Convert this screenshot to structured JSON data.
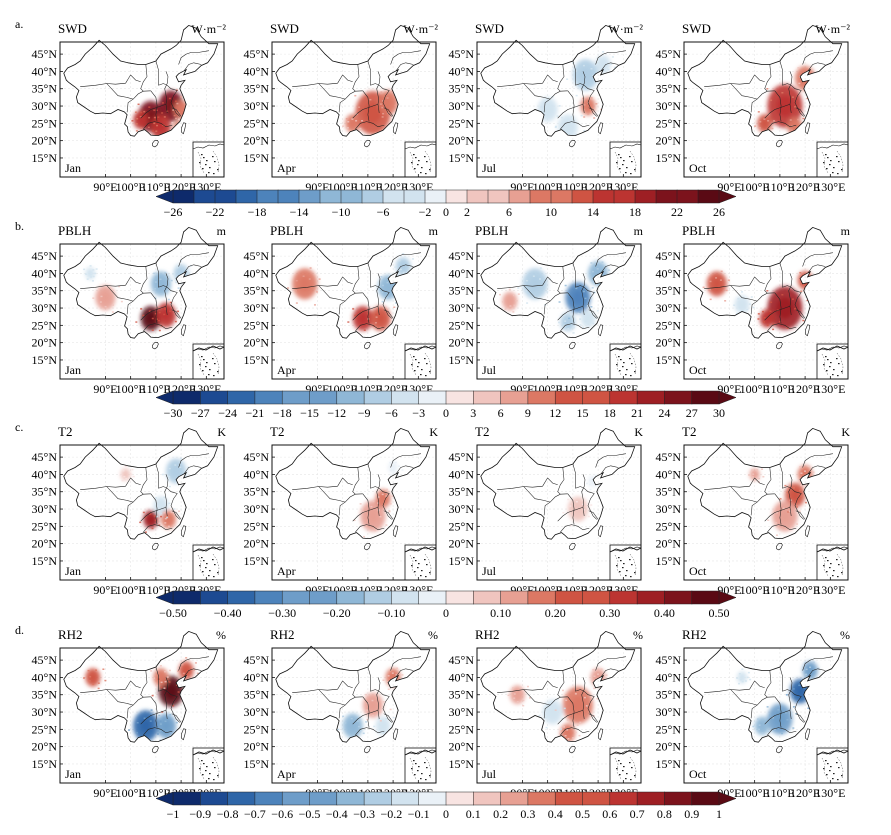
{
  "chart_data": {
    "type": "heatmap",
    "title": "",
    "months": [
      "Jan",
      "Apr",
      "Jul",
      "Oct"
    ],
    "lat_ticks": [
      "45°N",
      "40°N",
      "35°N",
      "30°N",
      "25°N",
      "20°N",
      "15°N"
    ],
    "lon_ticks": [
      "90°E",
      "100°E",
      "110°E",
      "120°E",
      "130°E"
    ],
    "rows": [
      {
        "panel_label": "a.",
        "variable": "SWD",
        "unit": "W·m⁻²",
        "colorbar": {
          "range": [
            -26,
            26
          ],
          "levels": [
            -26,
            -24,
            -22,
            -20,
            -18,
            -16,
            -14,
            -12,
            -10,
            -8,
            -6,
            -4,
            -2,
            0,
            2,
            4,
            6,
            8,
            10,
            12,
            14,
            16,
            18,
            20,
            22,
            24,
            26
          ],
          "tick_labels": [
            "−26",
            "−22",
            "−18",
            "−14",
            "−10",
            "−6",
            "−2",
            "0",
            "2",
            "6",
            "10",
            "14",
            "18",
            "22",
            "26"
          ],
          "tick_values": [
            -26,
            -22,
            -18,
            -14,
            -10,
            -6,
            -2,
            0,
            2,
            6,
            10,
            14,
            18,
            22,
            26
          ]
        },
        "anomalies": [
          [
            {
              "lon": 108,
              "lat": 27,
              "r": 5,
              "value": 22
            },
            {
              "lon": 116,
              "lat": 30,
              "r": 5,
              "value": 20
            },
            {
              "lon": 104,
              "lat": 26,
              "r": 3,
              "value": 14
            },
            {
              "lon": 112,
              "lat": 24,
              "r": 4,
              "value": 16
            },
            {
              "lon": 120,
              "lat": 29,
              "r": 3,
              "value": 10
            },
            {
              "lon": 119,
              "lat": 24,
              "r": 2,
              "value": 8
            }
          ],
          [
            {
              "lon": 112,
              "lat": 28,
              "r": 7,
              "value": 12
            },
            {
              "lon": 104,
              "lat": 25,
              "r": 3,
              "value": 8
            },
            {
              "lon": 118,
              "lat": 31,
              "r": 4,
              "value": 10
            },
            {
              "lon": 125,
              "lat": 24,
              "r": 2,
              "value": 6
            }
          ],
          [
            {
              "lon": 115,
              "lat": 39,
              "r": 5,
              "value": -8
            },
            {
              "lon": 100,
              "lat": 29,
              "r": 4,
              "value": -6
            },
            {
              "lon": 116,
              "lat": 30,
              "r": 3,
              "value": 10
            },
            {
              "lon": 108,
              "lat": 24,
              "r": 4,
              "value": -6
            },
            {
              "lon": 122,
              "lat": 42,
              "r": 3,
              "value": -4
            }
          ],
          [
            {
              "lon": 112,
              "lat": 30,
              "r": 7,
              "value": 14
            },
            {
              "lon": 104,
              "lat": 25,
              "r": 3,
              "value": 12
            },
            {
              "lon": 120,
              "lat": 38,
              "r": 4,
              "value": 8
            },
            {
              "lon": 116,
              "lat": 24,
              "r": 3,
              "value": 10
            }
          ]
        ]
      },
      {
        "panel_label": "b.",
        "variable": "PBLH",
        "unit": "m",
        "colorbar": {
          "range": [
            -30,
            30
          ],
          "levels": [
            -30,
            -27,
            -24,
            -21,
            -18,
            -15,
            -12,
            -9,
            -6,
            -3,
            0,
            3,
            6,
            9,
            12,
            15,
            18,
            21,
            24,
            27,
            30
          ],
          "tick_labels": [
            "−30",
            "−27",
            "−24",
            "−21",
            "−18",
            "−15",
            "−12",
            "−9",
            "−6",
            "−3",
            "0",
            "3",
            "6",
            "9",
            "12",
            "15",
            "18",
            "21",
            "24",
            "27",
            "30"
          ],
          "tick_values": [
            -30,
            -27,
            -24,
            -21,
            -18,
            -15,
            -12,
            -9,
            -6,
            -3,
            0,
            3,
            6,
            9,
            12,
            15,
            18,
            21,
            24,
            27,
            30
          ]
        },
        "anomalies": [
          [
            {
              "lon": 108,
              "lat": 27,
              "r": 4,
              "value": 28
            },
            {
              "lon": 114,
              "lat": 28,
              "r": 4,
              "value": 20
            },
            {
              "lon": 112,
              "lat": 37,
              "r": 4,
              "value": -12
            },
            {
              "lon": 90,
              "lat": 33,
              "r": 4,
              "value": 8
            },
            {
              "lon": 120,
              "lat": 40,
              "r": 3,
              "value": -9
            },
            {
              "lon": 84,
              "lat": 40,
              "r": 2,
              "value": -6
            }
          ],
          [
            {
              "lon": 108,
              "lat": 27,
              "r": 4,
              "value": 20
            },
            {
              "lon": 85,
              "lat": 37,
              "r": 5,
              "value": 10
            },
            {
              "lon": 118,
              "lat": 36,
              "r": 4,
              "value": -12
            },
            {
              "lon": 115,
              "lat": 27,
              "r": 4,
              "value": 12
            },
            {
              "lon": 124,
              "lat": 42,
              "r": 3,
              "value": -9
            }
          ],
          [
            {
              "lon": 112,
              "lat": 33,
              "r": 5,
              "value": -20
            },
            {
              "lon": 95,
              "lat": 37,
              "r": 5,
              "value": -9
            },
            {
              "lon": 120,
              "lat": 40,
              "r": 4,
              "value": -12
            },
            {
              "lon": 108,
              "lat": 26,
              "r": 3,
              "value": -9
            },
            {
              "lon": 116,
              "lat": 27,
              "r": 3,
              "value": -6
            },
            {
              "lon": 85,
              "lat": 32,
              "r": 3,
              "value": 6
            }
          ],
          [
            {
              "lon": 112,
              "lat": 30,
              "r": 7,
              "value": 22
            },
            {
              "lon": 85,
              "lat": 37,
              "r": 4,
              "value": 12
            },
            {
              "lon": 120,
              "lat": 38,
              "r": 3,
              "value": 15
            },
            {
              "lon": 105,
              "lat": 27,
              "r": 3,
              "value": 20
            },
            {
              "lon": 95,
              "lat": 31,
              "r": 3,
              "value": -6
            }
          ]
        ]
      },
      {
        "panel_label": "c.",
        "variable": "T2",
        "unit": "K",
        "colorbar": {
          "range": [
            -0.5,
            0.5
          ],
          "levels": [
            -0.5,
            -0.45,
            -0.4,
            -0.35,
            -0.3,
            -0.25,
            -0.2,
            -0.15,
            -0.1,
            -0.05,
            0,
            0.05,
            0.1,
            0.15,
            0.2,
            0.25,
            0.3,
            0.35,
            0.4,
            0.45,
            0.5
          ],
          "tick_labels": [
            "−0.50",
            "−0.40",
            "−0.30",
            "−0.20",
            "−0.10",
            "0",
            "0.10",
            "0.20",
            "0.30",
            "0.40",
            "0.50"
          ],
          "tick_values": [
            -0.5,
            -0.4,
            -0.3,
            -0.2,
            -0.1,
            0,
            0.1,
            0.2,
            0.3,
            0.4,
            0.5
          ]
        },
        "anomalies": [
          [
            {
              "lon": 108,
              "lat": 27,
              "r": 3,
              "value": 0.35
            },
            {
              "lon": 118,
              "lat": 41,
              "r": 4,
              "value": -0.15
            },
            {
              "lon": 112,
              "lat": 31,
              "r": 3,
              "value": -0.1
            },
            {
              "lon": 115,
              "lat": 27,
              "r": 3,
              "value": 0.15
            },
            {
              "lon": 98,
              "lat": 40,
              "r": 2,
              "value": 0.05
            }
          ],
          [
            {
              "lon": 112,
              "lat": 28,
              "r": 5,
              "value": 0.1
            },
            {
              "lon": 116,
              "lat": 33,
              "r": 3,
              "value": 0.15
            },
            {
              "lon": 120,
              "lat": 42,
              "r": 2,
              "value": -0.05
            }
          ],
          [
            {
              "lon": 112,
              "lat": 30,
              "r": 4,
              "value": 0.05
            },
            {
              "lon": 118,
              "lat": 38,
              "r": 2,
              "value": -0.05
            }
          ],
          [
            {
              "lon": 116,
              "lat": 34,
              "r": 4,
              "value": 0.25
            },
            {
              "lon": 112,
              "lat": 28,
              "r": 5,
              "value": 0.1
            },
            {
              "lon": 120,
              "lat": 40,
              "r": 3,
              "value": 0.15
            },
            {
              "lon": 100,
              "lat": 40,
              "r": 2,
              "value": 0.1
            }
          ]
        ]
      },
      {
        "panel_label": "d.",
        "variable": "RH2",
        "unit": "%",
        "colorbar": {
          "range": [
            -1,
            1
          ],
          "levels": [
            -1,
            -0.9,
            -0.8,
            -0.7,
            -0.6,
            -0.5,
            -0.4,
            -0.3,
            -0.2,
            -0.1,
            0,
            0.1,
            0.2,
            0.3,
            0.4,
            0.5,
            0.6,
            0.7,
            0.8,
            0.9,
            1
          ],
          "tick_labels": [
            "−1",
            "−0.9",
            "−0.8",
            "−0.7",
            "−0.6",
            "−0.5",
            "−0.4",
            "−0.3",
            "−0.2",
            "−0.1",
            "0",
            "0.1",
            "0.2",
            "0.3",
            "0.4",
            "0.5",
            "0.6",
            "0.7",
            "0.8",
            "0.9",
            "1"
          ],
          "tick_values": [
            -1,
            -0.9,
            -0.8,
            -0.7,
            -0.6,
            -0.5,
            -0.4,
            -0.3,
            -0.2,
            -0.1,
            0,
            0.1,
            0.2,
            0.3,
            0.4,
            0.5,
            0.6,
            0.7,
            0.8,
            0.9,
            1
          ]
        },
        "anomalies": [
          [
            {
              "lon": 116,
              "lat": 36,
              "r": 5,
              "value": 0.9
            },
            {
              "lon": 106,
              "lat": 26,
              "r": 5,
              "value": -0.8
            },
            {
              "lon": 114,
              "lat": 26,
              "r": 4,
              "value": -0.6
            },
            {
              "lon": 85,
              "lat": 40,
              "r": 3,
              "value": 0.5
            },
            {
              "lon": 122,
              "lat": 42,
              "r": 3,
              "value": 0.4
            },
            {
              "lon": 112,
              "lat": 40,
              "r": 3,
              "value": 0.3
            }
          ],
          [
            {
              "lon": 104,
              "lat": 26,
              "r": 4,
              "value": -0.4
            },
            {
              "lon": 120,
              "lat": 40,
              "r": 3,
              "value": 0.3
            },
            {
              "lon": 112,
              "lat": 32,
              "r": 4,
              "value": 0.2
            },
            {
              "lon": 116,
              "lat": 26,
              "r": 3,
              "value": -0.2
            }
          ],
          [
            {
              "lon": 112,
              "lat": 32,
              "r": 6,
              "value": 0.3
            },
            {
              "lon": 102,
              "lat": 30,
              "r": 4,
              "value": -0.2
            },
            {
              "lon": 120,
              "lat": 40,
              "r": 3,
              "value": 0.2
            },
            {
              "lon": 88,
              "lat": 35,
              "r": 3,
              "value": 0.2
            },
            {
              "lon": 108,
              "lat": 24,
              "r": 3,
              "value": 0.3
            }
          ],
          [
            {
              "lon": 110,
              "lat": 28,
              "r": 5,
              "value": -0.6
            },
            {
              "lon": 118,
              "lat": 36,
              "r": 4,
              "value": -0.8
            },
            {
              "lon": 122,
              "lat": 42,
              "r": 3,
              "value": -0.5
            },
            {
              "lon": 103,
              "lat": 26,
              "r": 3,
              "value": -0.4
            },
            {
              "lon": 95,
              "lat": 40,
              "r": 2,
              "value": -0.2
            }
          ]
        ]
      }
    ]
  },
  "palette": {
    "negative": [
      "#0e2a6b",
      "#1d4a92",
      "#2f66a8",
      "#4d83bb",
      "#6e9dc9",
      "#8fb7d6",
      "#b0cde3",
      "#d2e3ef",
      "#eaf1f7"
    ],
    "positive": [
      "#f8e4e2",
      "#f0c5bf",
      "#e7a093",
      "#dc7864",
      "#cf5443",
      "#bc3431",
      "#9e1f24",
      "#7c131c",
      "#5a0a14"
    ]
  }
}
